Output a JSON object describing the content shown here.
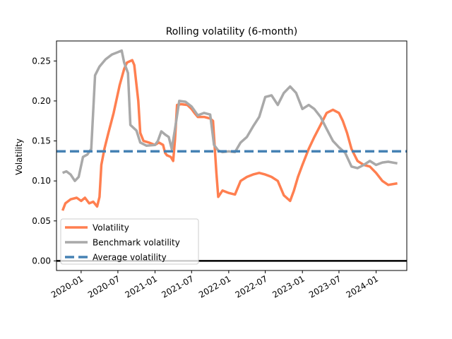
{
  "chart_data": {
    "type": "line",
    "title": "Rolling volatility (6-month)",
    "xlabel": "",
    "ylabel": "Volatility",
    "xlim": [
      "2019-09-01",
      "2024-06-01"
    ],
    "ylim": [
      -0.012,
      0.275
    ],
    "x_ticks": [
      "2020-01",
      "2020-07",
      "2021-01",
      "2021-07",
      "2022-01",
      "2022-07",
      "2023-01",
      "2023-07",
      "2024-01"
    ],
    "y_ticks": [
      "0.00",
      "0.05",
      "0.10",
      "0.15",
      "0.20",
      "0.25"
    ],
    "grid": false,
    "legend_position": "bottom-left",
    "reference_lines": [
      {
        "name": "Average volatility",
        "y": 0.137,
        "color": "#4682b4",
        "style": "dashed"
      },
      {
        "name": "",
        "y": 0.0,
        "color": "#000000",
        "style": "solid"
      }
    ],
    "series": [
      {
        "name": "Volatility",
        "color": "#ff7f50",
        "points": [
          [
            "2019-10-01",
            0.063
          ],
          [
            "2019-10-15",
            0.072
          ],
          [
            "2019-11-10",
            0.077
          ],
          [
            "2019-12-10",
            0.079
          ],
          [
            "2020-01-01",
            0.075
          ],
          [
            "2020-01-20",
            0.079
          ],
          [
            "2020-02-10",
            0.072
          ],
          [
            "2020-03-01",
            0.074
          ],
          [
            "2020-03-20",
            0.068
          ],
          [
            "2020-04-01",
            0.08
          ],
          [
            "2020-04-10",
            0.12
          ],
          [
            "2020-04-25",
            0.14
          ],
          [
            "2020-05-15",
            0.16
          ],
          [
            "2020-06-10",
            0.185
          ],
          [
            "2020-07-10",
            0.22
          ],
          [
            "2020-08-01",
            0.24
          ],
          [
            "2020-08-15",
            0.248
          ],
          [
            "2020-09-10",
            0.251
          ],
          [
            "2020-09-20",
            0.245
          ],
          [
            "2020-10-10",
            0.2
          ],
          [
            "2020-10-20",
            0.16
          ],
          [
            "2020-11-05",
            0.15
          ],
          [
            "2020-12-01",
            0.148
          ],
          [
            "2021-01-01",
            0.145
          ],
          [
            "2021-01-20",
            0.148
          ],
          [
            "2021-02-10",
            0.145
          ],
          [
            "2021-02-20",
            0.135
          ],
          [
            "2021-03-01",
            0.132
          ],
          [
            "2021-03-20",
            0.13
          ],
          [
            "2021-04-01",
            0.125
          ],
          [
            "2021-04-10",
            0.152
          ],
          [
            "2021-04-20",
            0.195
          ],
          [
            "2021-05-10",
            0.196
          ],
          [
            "2021-06-10",
            0.195
          ],
          [
            "2021-07-01",
            0.19
          ],
          [
            "2021-07-15",
            0.185
          ],
          [
            "2021-08-01",
            0.18
          ],
          [
            "2021-09-01",
            0.18
          ],
          [
            "2021-10-01",
            0.178
          ],
          [
            "2021-10-15",
            0.175
          ],
          [
            "2021-11-01",
            0.11
          ],
          [
            "2021-11-10",
            0.08
          ],
          [
            "2021-12-01",
            0.088
          ],
          [
            "2022-01-01",
            0.085
          ],
          [
            "2022-02-01",
            0.083
          ],
          [
            "2022-03-01",
            0.1
          ],
          [
            "2022-04-01",
            0.105
          ],
          [
            "2022-05-01",
            0.108
          ],
          [
            "2022-06-01",
            0.11
          ],
          [
            "2022-07-01",
            0.108
          ],
          [
            "2022-08-01",
            0.105
          ],
          [
            "2022-09-01",
            0.1
          ],
          [
            "2022-10-01",
            0.082
          ],
          [
            "2022-11-01",
            0.075
          ],
          [
            "2022-11-20",
            0.088
          ],
          [
            "2022-12-10",
            0.105
          ],
          [
            "2023-01-01",
            0.12
          ],
          [
            "2023-02-01",
            0.14
          ],
          [
            "2023-03-01",
            0.155
          ],
          [
            "2023-04-01",
            0.17
          ],
          [
            "2023-05-01",
            0.185
          ],
          [
            "2023-06-01",
            0.189
          ],
          [
            "2023-07-01",
            0.185
          ],
          [
            "2023-07-20",
            0.175
          ],
          [
            "2023-08-10",
            0.16
          ],
          [
            "2023-09-01",
            0.14
          ],
          [
            "2023-10-01",
            0.125
          ],
          [
            "2023-11-01",
            0.12
          ],
          [
            "2023-12-01",
            0.118
          ],
          [
            "2024-01-01",
            0.11
          ],
          [
            "2024-02-01",
            0.1
          ],
          [
            "2024-03-01",
            0.095
          ],
          [
            "2024-04-15",
            0.097
          ]
        ]
      },
      {
        "name": "Benchmark volatility",
        "color": "#a9a9a9",
        "points": [
          [
            "2019-10-01",
            0.11
          ],
          [
            "2019-10-20",
            0.112
          ],
          [
            "2019-11-10",
            0.108
          ],
          [
            "2019-12-01",
            0.1
          ],
          [
            "2019-12-20",
            0.105
          ],
          [
            "2020-01-10",
            0.13
          ],
          [
            "2020-02-01",
            0.133
          ],
          [
            "2020-02-20",
            0.14
          ],
          [
            "2020-03-10",
            0.232
          ],
          [
            "2020-04-01",
            0.243
          ],
          [
            "2020-05-01",
            0.252
          ],
          [
            "2020-06-01",
            0.258
          ],
          [
            "2020-07-01",
            0.261
          ],
          [
            "2020-07-20",
            0.263
          ],
          [
            "2020-08-01",
            0.248
          ],
          [
            "2020-08-20",
            0.235
          ],
          [
            "2020-09-01",
            0.17
          ],
          [
            "2020-10-01",
            0.163
          ],
          [
            "2020-10-20",
            0.148
          ],
          [
            "2020-11-20",
            0.144
          ],
          [
            "2021-01-01",
            0.145
          ],
          [
            "2021-01-15",
            0.15
          ],
          [
            "2021-02-01",
            0.162
          ],
          [
            "2021-02-20",
            0.158
          ],
          [
            "2021-03-10",
            0.155
          ],
          [
            "2021-03-25",
            0.14
          ],
          [
            "2021-04-10",
            0.165
          ],
          [
            "2021-05-01",
            0.2
          ],
          [
            "2021-06-01",
            0.199
          ],
          [
            "2021-07-01",
            0.193
          ],
          [
            "2021-08-01",
            0.182
          ],
          [
            "2021-09-01",
            0.185
          ],
          [
            "2021-10-01",
            0.183
          ],
          [
            "2021-10-20",
            0.145
          ],
          [
            "2021-11-10",
            0.138
          ],
          [
            "2021-12-01",
            0.136
          ],
          [
            "2022-01-01",
            0.137
          ],
          [
            "2022-02-01",
            0.136
          ],
          [
            "2022-03-01",
            0.148
          ],
          [
            "2022-04-01",
            0.155
          ],
          [
            "2022-05-01",
            0.168
          ],
          [
            "2022-06-01",
            0.18
          ],
          [
            "2022-07-01",
            0.205
          ],
          [
            "2022-08-01",
            0.207
          ],
          [
            "2022-09-01",
            0.195
          ],
          [
            "2022-10-01",
            0.21
          ],
          [
            "2022-11-01",
            0.218
          ],
          [
            "2022-12-01",
            0.21
          ],
          [
            "2023-01-01",
            0.19
          ],
          [
            "2023-02-01",
            0.195
          ],
          [
            "2023-03-01",
            0.19
          ],
          [
            "2023-04-01",
            0.18
          ],
          [
            "2023-05-01",
            0.165
          ],
          [
            "2023-06-01",
            0.15
          ],
          [
            "2023-07-01",
            0.142
          ],
          [
            "2023-08-01",
            0.135
          ],
          [
            "2023-09-01",
            0.118
          ],
          [
            "2023-10-01",
            0.116
          ],
          [
            "2023-11-01",
            0.12
          ],
          [
            "2023-12-01",
            0.125
          ],
          [
            "2024-01-01",
            0.12
          ],
          [
            "2024-02-01",
            0.123
          ],
          [
            "2024-03-01",
            0.124
          ],
          [
            "2024-04-15",
            0.122
          ]
        ]
      }
    ]
  }
}
